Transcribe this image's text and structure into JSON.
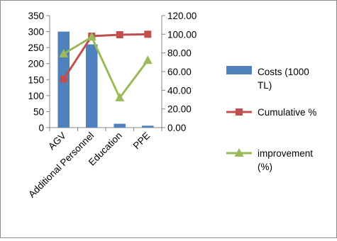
{
  "chart_data": {
    "type": "bar",
    "categories": [
      "AGV",
      "Additional Personnel",
      "Education",
      "PPE"
    ],
    "series": [
      {
        "name": "Costs (1000 TL)",
        "type": "bar",
        "axis": "left",
        "values": [
          300,
          260,
          12,
          6
        ]
      },
      {
        "name": "Cumulative %",
        "type": "line",
        "axis": "right",
        "marker": "square",
        "values": [
          52,
          98,
          99.5,
          100
        ]
      },
      {
        "name": "improvement (%)",
        "type": "line",
        "axis": "right",
        "marker": "triangle",
        "values": [
          79,
          97,
          32,
          72
        ]
      }
    ],
    "y_left": {
      "ylim": [
        0,
        350
      ],
      "ticks": [
        "0",
        "50",
        "100",
        "150",
        "200",
        "250",
        "300",
        "350"
      ]
    },
    "y_right": {
      "ylim": [
        0,
        120
      ],
      "ticks": [
        "0.00",
        "20.00",
        "40.00",
        "60.00",
        "80.00",
        "100.00",
        "120.00"
      ]
    },
    "legend": {
      "position": "right",
      "items": [
        {
          "lines": [
            "Costs (1000",
            "TL)"
          ]
        },
        {
          "lines": [
            "Cumulative %"
          ]
        },
        {
          "lines": [
            "improvement",
            "(%)"
          ]
        }
      ]
    },
    "grid": false,
    "colors": {
      "bar": "#4f81bd",
      "cumulative": "#c0504d",
      "improvement": "#9bbb59",
      "axis": "#868686"
    }
  }
}
